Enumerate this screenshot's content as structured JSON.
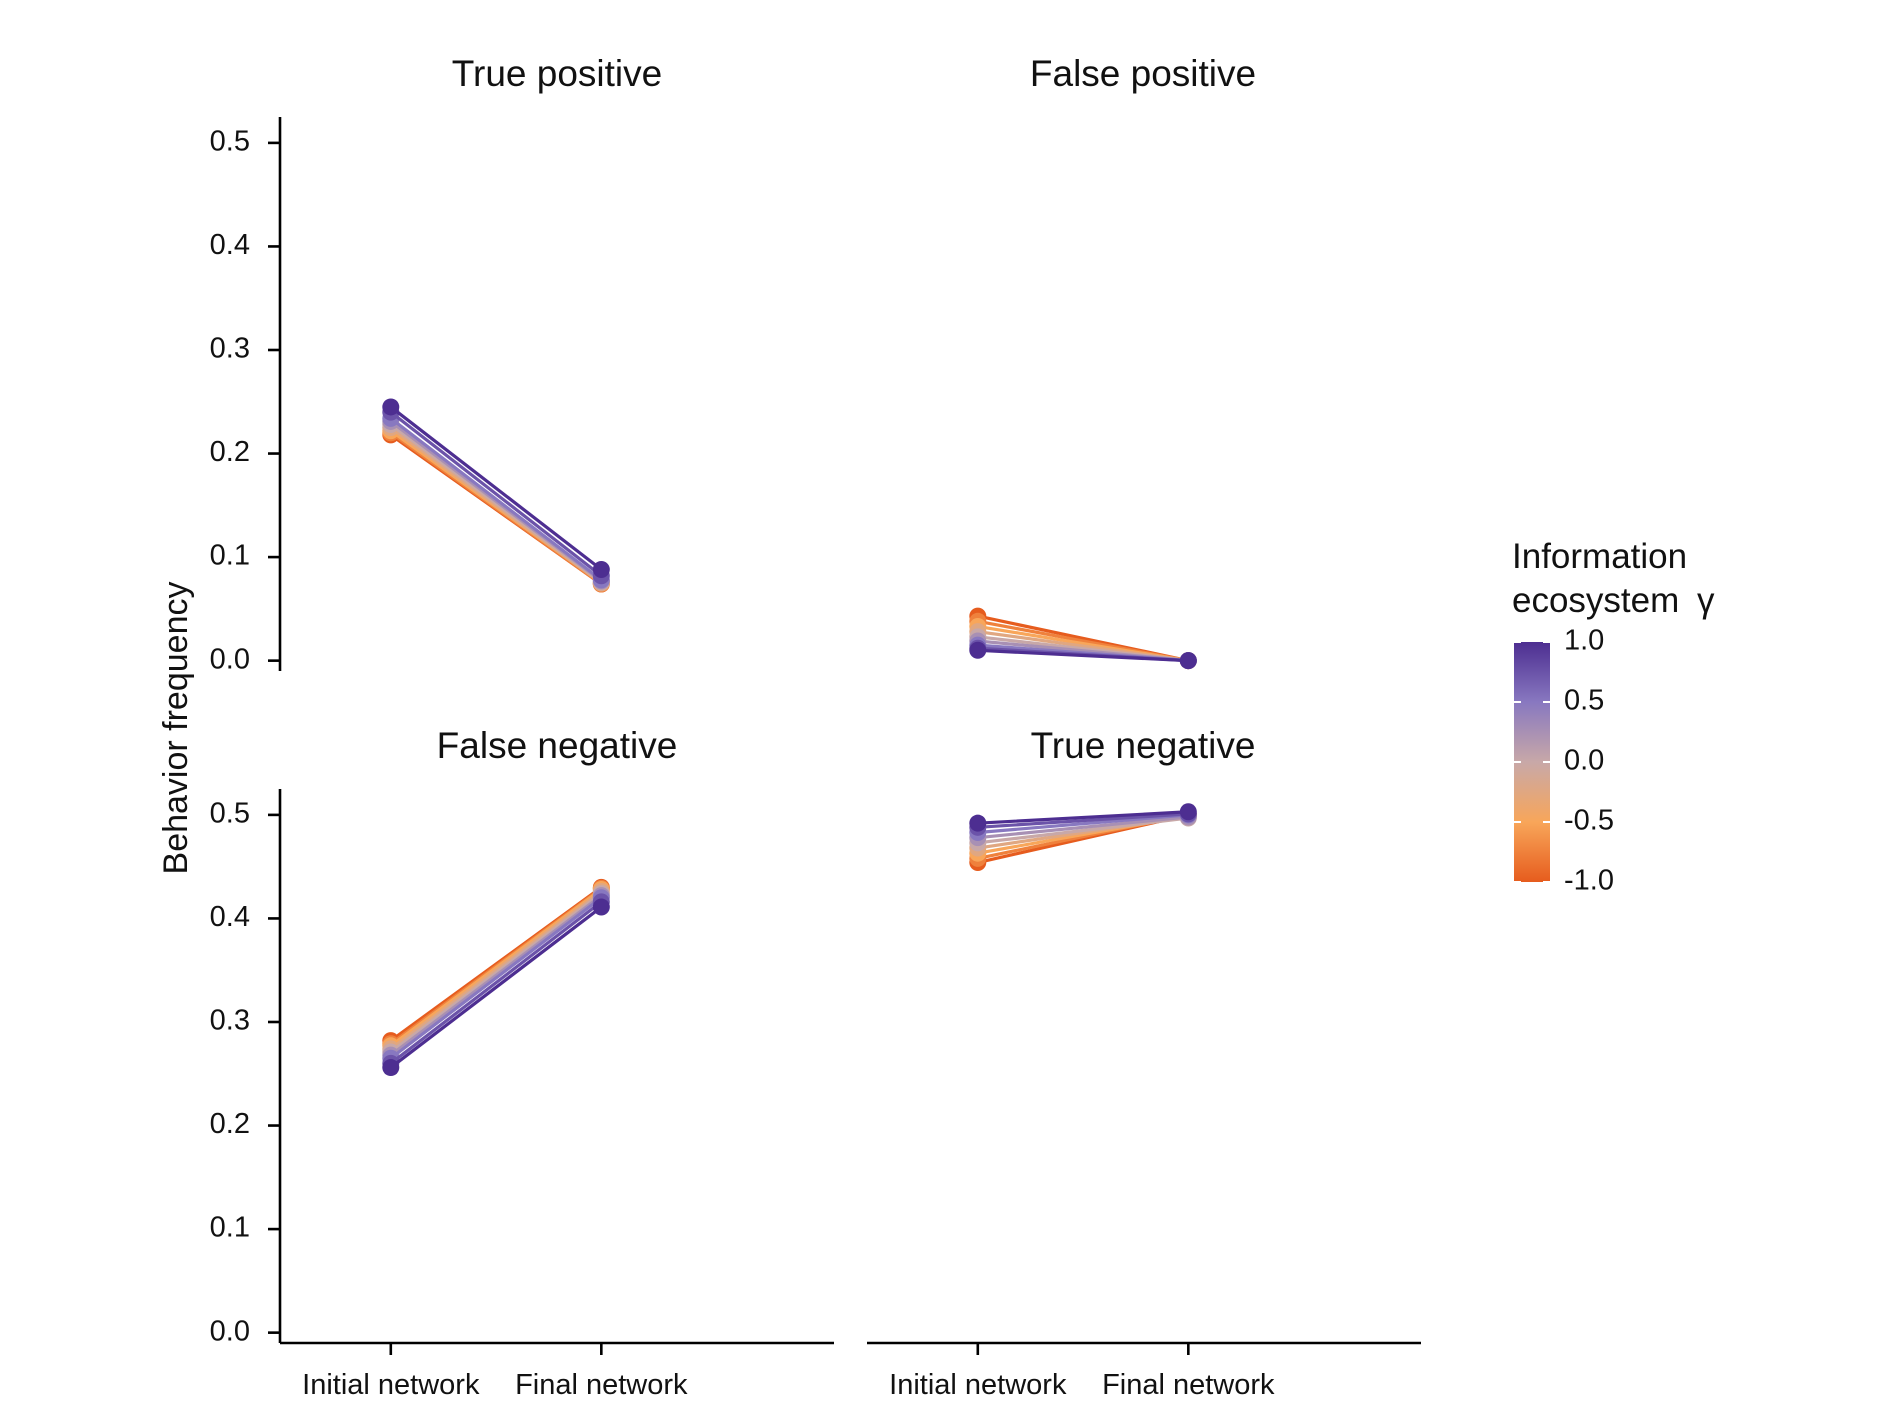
{
  "chart_data": {
    "type": "line",
    "ylabel": "Behavior frequency",
    "x_categories": [
      "Initial network",
      "Final network"
    ],
    "ylim": [
      -0.01,
      0.525
    ],
    "y_ticks": [
      "0.0",
      "0.1",
      "0.2",
      "0.3",
      "0.4",
      "0.5"
    ],
    "legend": {
      "title_lines": [
        "Information",
        "ecosystem"
      ],
      "title_symbol": "γ",
      "placement": "right",
      "range": [
        -1.0,
        1.0
      ],
      "tick_labels": [
        "1.0",
        "0.5",
        "0.0",
        "-0.5",
        "-1.0"
      ],
      "colors": {
        "low": "#e65c1e",
        "lowmid": "#f8a65a",
        "mid": "#c8a8a8",
        "highmid": "#8878c0",
        "high": "#4d2e91"
      }
    },
    "panels": [
      {
        "title": "True positive",
        "series": [
          {
            "gamma": -1.0,
            "values": [
              0.218,
              0.074
            ]
          },
          {
            "gamma": -0.75,
            "values": [
              0.22,
              0.074
            ]
          },
          {
            "gamma": -0.5,
            "values": [
              0.222,
              0.075
            ]
          },
          {
            "gamma": -0.25,
            "values": [
              0.225,
              0.075
            ]
          },
          {
            "gamma": 0.0,
            "values": [
              0.228,
              0.076
            ]
          },
          {
            "gamma": 0.25,
            "values": [
              0.231,
              0.077
            ]
          },
          {
            "gamma": 0.5,
            "values": [
              0.234,
              0.078
            ]
          },
          {
            "gamma": 0.75,
            "values": [
              0.24,
              0.082
            ]
          },
          {
            "gamma": 1.0,
            "values": [
              0.245,
              0.088
            ]
          }
        ]
      },
      {
        "title": "False positive",
        "series": [
          {
            "gamma": -1.0,
            "values": [
              0.043,
              0.0
            ]
          },
          {
            "gamma": -0.75,
            "values": [
              0.038,
              0.0
            ]
          },
          {
            "gamma": -0.5,
            "values": [
              0.033,
              0.0
            ]
          },
          {
            "gamma": -0.25,
            "values": [
              0.028,
              0.0
            ]
          },
          {
            "gamma": 0.0,
            "values": [
              0.023,
              0.0
            ]
          },
          {
            "gamma": 0.25,
            "values": [
              0.019,
              0.0
            ]
          },
          {
            "gamma": 0.5,
            "values": [
              0.015,
              0.0
            ]
          },
          {
            "gamma": 0.75,
            "values": [
              0.012,
              0.0
            ]
          },
          {
            "gamma": 1.0,
            "values": [
              0.01,
              0.0
            ]
          }
        ]
      },
      {
        "title": "False negative",
        "series": [
          {
            "gamma": -1.0,
            "values": [
              0.282,
              0.43
            ]
          },
          {
            "gamma": -0.75,
            "values": [
              0.279,
              0.429
            ]
          },
          {
            "gamma": -0.5,
            "values": [
              0.277,
              0.428
            ]
          },
          {
            "gamma": -0.25,
            "values": [
              0.274,
              0.426
            ]
          },
          {
            "gamma": 0.0,
            "values": [
              0.271,
              0.424
            ]
          },
          {
            "gamma": 0.25,
            "values": [
              0.268,
              0.422
            ]
          },
          {
            "gamma": 0.5,
            "values": [
              0.265,
              0.42
            ]
          },
          {
            "gamma": 0.75,
            "values": [
              0.26,
              0.416
            ]
          },
          {
            "gamma": 1.0,
            "values": [
              0.256,
              0.411
            ]
          }
        ]
      },
      {
        "title": "True negative",
        "series": [
          {
            "gamma": -1.0,
            "values": [
              0.454,
              0.5
            ]
          },
          {
            "gamma": -0.75,
            "values": [
              0.458,
              0.5
            ]
          },
          {
            "gamma": -0.5,
            "values": [
              0.463,
              0.499
            ]
          },
          {
            "gamma": -0.25,
            "values": [
              0.468,
              0.498
            ]
          },
          {
            "gamma": 0.0,
            "values": [
              0.473,
              0.497
            ]
          },
          {
            "gamma": 0.25,
            "values": [
              0.478,
              0.498
            ]
          },
          {
            "gamma": 0.5,
            "values": [
              0.483,
              0.5
            ]
          },
          {
            "gamma": 0.75,
            "values": [
              0.488,
              0.501
            ]
          },
          {
            "gamma": 1.0,
            "values": [
              0.492,
              0.503
            ]
          }
        ]
      }
    ]
  }
}
